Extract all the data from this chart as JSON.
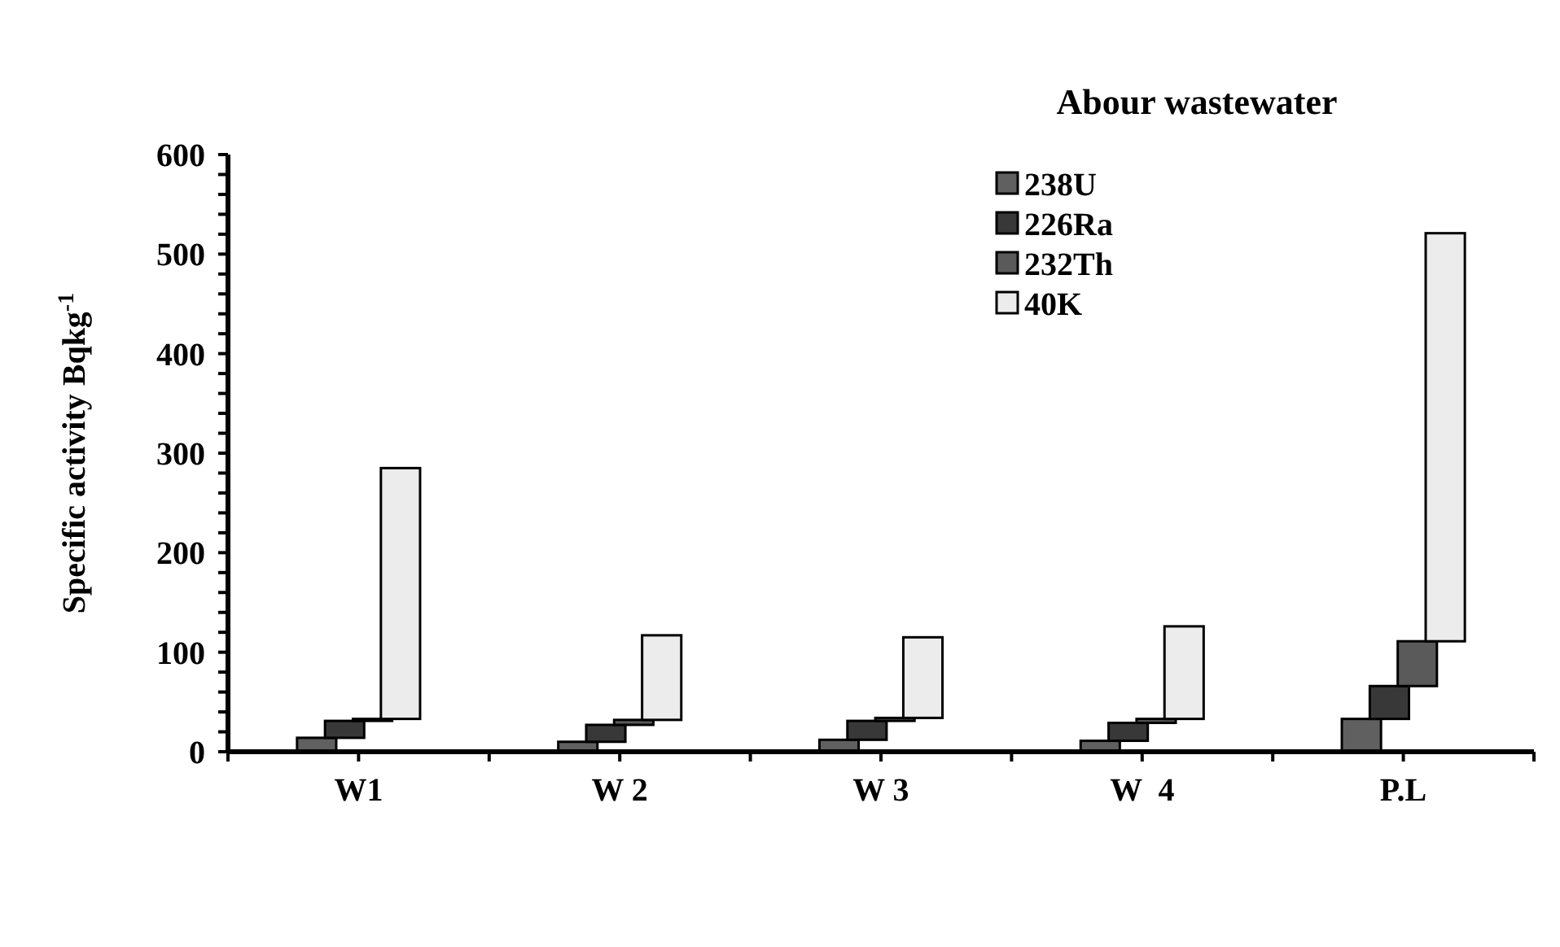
{
  "chart_data": {
    "type": "bar",
    "title": "Abour wastewater",
    "ylabel": "Specific activity Bqkg$^{-1}$",
    "categories": [
      "W1",
      "W 2",
      "W 3",
      "W  4",
      "P.L"
    ],
    "series": [
      {
        "name": "238U",
        "color": "#606060",
        "values": [
          14,
          10,
          12,
          11,
          33
        ],
        "base": [
          0,
          0,
          0,
          0,
          0
        ]
      },
      {
        "name": "226Ra",
        "color": "#383838",
        "values": [
          17,
          17,
          19,
          18,
          33
        ],
        "base": [
          14,
          10,
          12,
          11,
          33
        ]
      },
      {
        "name": "232Th",
        "color": "#5a5a5a",
        "values": [
          2,
          5,
          3,
          4,
          45
        ],
        "base": [
          31,
          27,
          31,
          29,
          66
        ]
      },
      {
        "name": "40K",
        "color": "#ececec",
        "values": [
          252,
          85,
          81,
          93,
          410
        ],
        "base": [
          33,
          32,
          34,
          33,
          111
        ]
      }
    ],
    "ylim": [
      0,
      600
    ],
    "yticks": [
      0,
      100,
      200,
      300,
      400,
      500,
      600
    ],
    "legend": "top right"
  }
}
